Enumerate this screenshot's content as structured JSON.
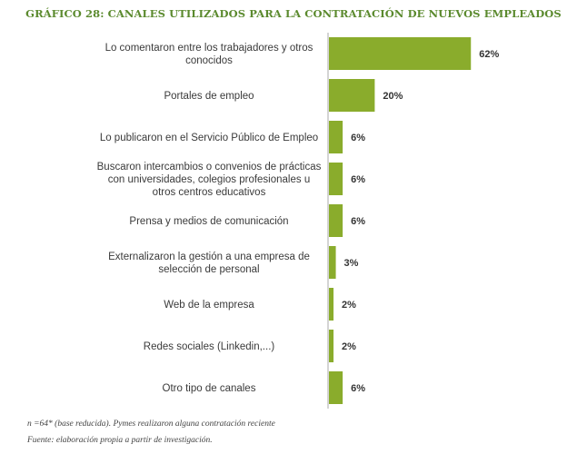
{
  "chart_data": {
    "type": "bar",
    "orientation": "horizontal",
    "title": "GRÁFICO 28: CANALES UTILIZADOS PARA LA CONTRATACIÓN DE NUEVOS EMPLEADOS",
    "categories": [
      [
        "Lo comentaron entre los trabajadores y otros",
        "conocidos"
      ],
      [
        "Portales de empleo"
      ],
      [
        "Lo publicaron en el Servicio Público de Empleo"
      ],
      [
        "Buscaron intercambios o convenios de prácticas",
        "con universidades, colegios profesionales u",
        "otros centros educativos"
      ],
      [
        "Prensa y medios de comunicación"
      ],
      [
        "Externalizaron la gestión a una empresa de",
        "selección de personal"
      ],
      [
        "Web de la empresa"
      ],
      [
        "Redes sociales (Linkedin,...)"
      ],
      [
        "Otro tipo de canales"
      ]
    ],
    "values": [
      62,
      20,
      6,
      6,
      6,
      3,
      2,
      2,
      6
    ],
    "value_labels": [
      "62%",
      "20%",
      "6%",
      "6%",
      "6%",
      "3%",
      "2%",
      "2%",
      "6%"
    ],
    "xlim": [
      0,
      100
    ],
    "bar_color": "#8aac2c",
    "axis_color": "#aaaaaa",
    "grid": false
  },
  "notes": {
    "base": "n =64* (base reducida). Pymes realizaron alguna contratación reciente",
    "source": "Fuente: elaboración propia a partir de investigación."
  }
}
